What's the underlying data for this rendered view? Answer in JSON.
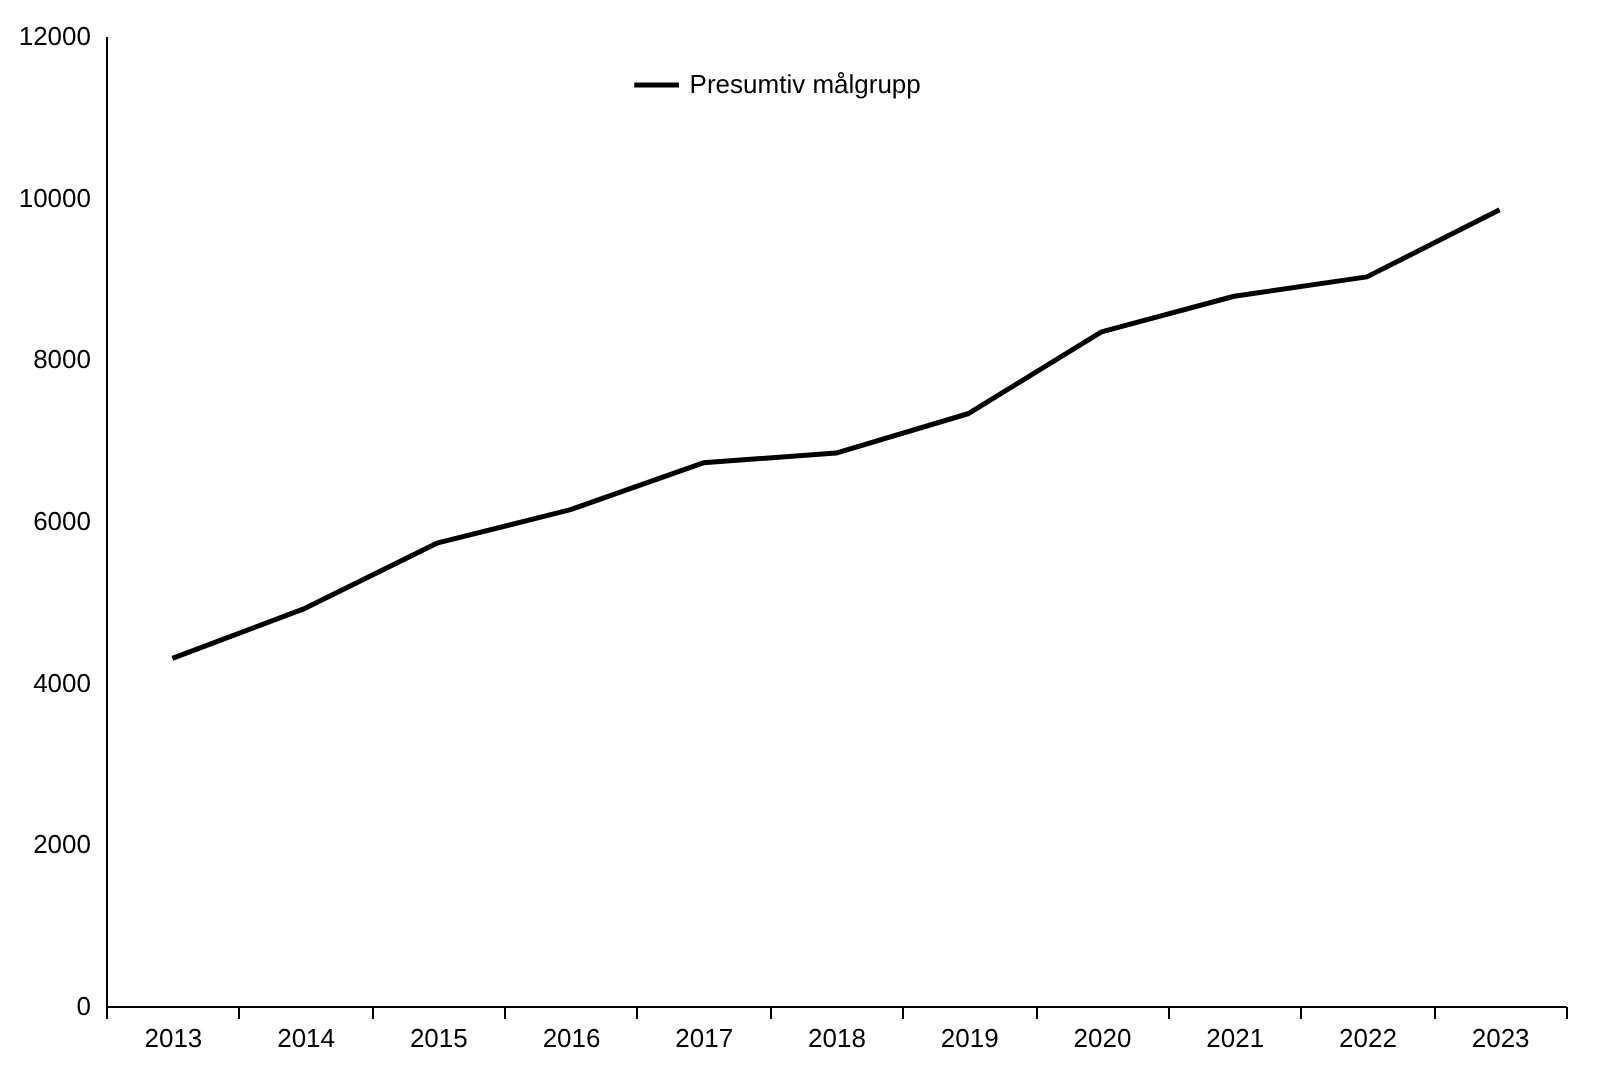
{
  "chart_data": {
    "type": "line",
    "categories": [
      "2013",
      "2014",
      "2015",
      "2016",
      "2017",
      "2018",
      "2019",
      "2020",
      "2021",
      "2022",
      "2023"
    ],
    "series": [
      {
        "name": "Presumtiv målgrupp",
        "color": "#000000",
        "values": [
          4300,
          4920,
          5730,
          6140,
          6720,
          6840,
          7330,
          8340,
          8780,
          9020,
          9850
        ]
      }
    ],
    "ylim": [
      0,
      12000
    ],
    "yticks": [
      0,
      2000,
      4000,
      6000,
      8000,
      10000,
      12000
    ],
    "grid": false,
    "legend": "top",
    "marker": "none",
    "line_style": "solid"
  }
}
